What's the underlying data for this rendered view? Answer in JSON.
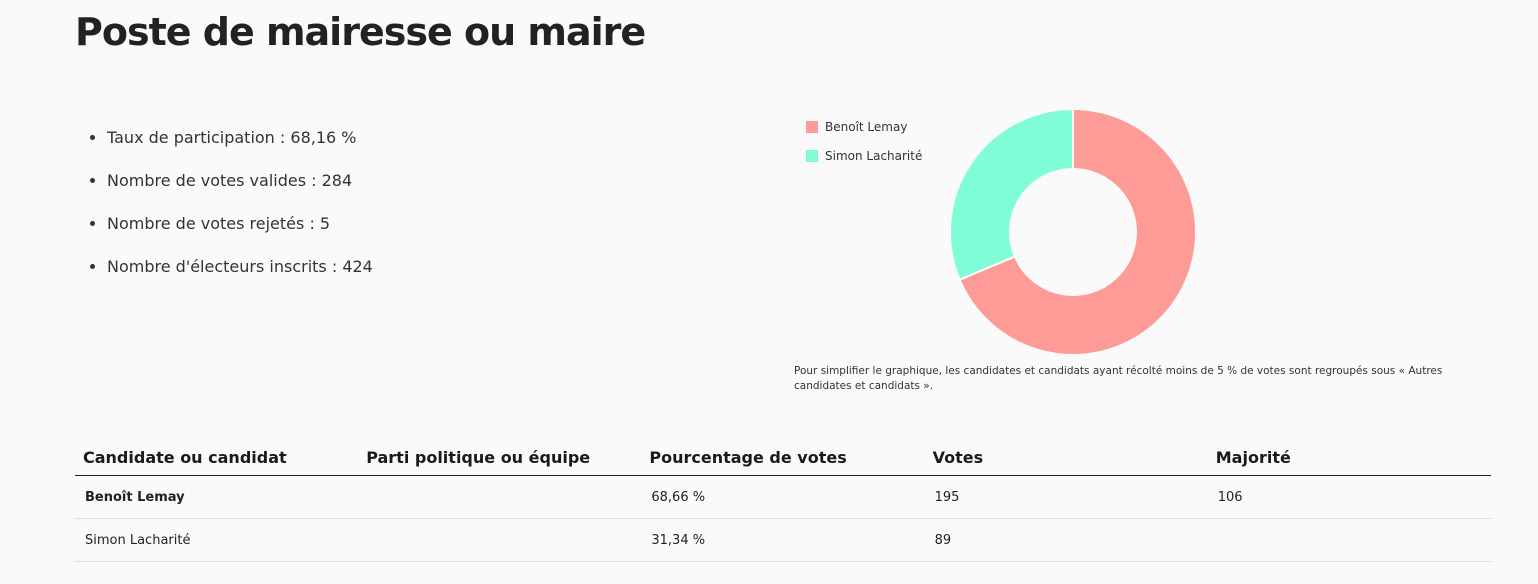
{
  "title": "Poste de mairesse ou maire",
  "stats": [
    "Taux de participation : 68,16 %",
    "Nombre de votes valides : 284",
    "Nombre de votes rejetés : 5",
    "Nombre d'électeurs inscrits : 424"
  ],
  "chart_data": {
    "type": "pie",
    "donut": true,
    "categories": [
      "Benoît Lemay",
      "Simon Lacharité"
    ],
    "values": [
      68.66,
      31.34
    ],
    "colors": [
      "#ff9b97",
      "#80fcd6"
    ],
    "legend": "top-left"
  },
  "note": "Pour simplifier le graphique, les candidates et candidats ayant récolté moins de 5 % de votes sont regroupés sous « Autres candidates et candidats ».",
  "table": {
    "headers": [
      "Candidate ou candidat",
      "Parti politique ou équipe",
      "Pourcentage de votes",
      "Votes",
      "Majorité"
    ],
    "rows": [
      [
        "Benoît Lemay",
        "",
        "68,66 %",
        "195",
        "106"
      ],
      [
        "Simon Lacharité",
        "",
        "31,34 %",
        "89",
        ""
      ]
    ]
  }
}
